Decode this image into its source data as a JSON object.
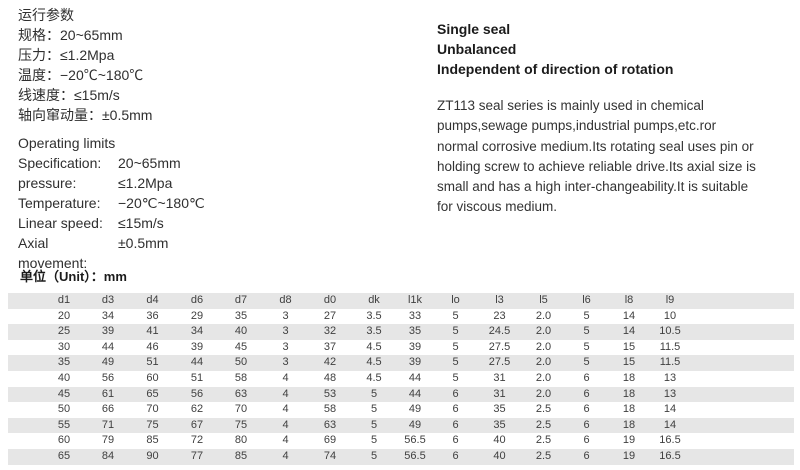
{
  "colors": {
    "stripe": "#e6e6e6",
    "text": "#2f2f2f"
  },
  "operating_cn": {
    "title": "运行参数",
    "rows": [
      {
        "label": "规格：",
        "value": "20~65mm"
      },
      {
        "label": "压力：",
        "value": "≤1.2Mpa"
      },
      {
        "label": "温度：",
        "value": "−20℃~180℃"
      },
      {
        "label": "线速度：",
        "value": "≤15m/s"
      },
      {
        "label": "轴向窜动量：",
        "value": "±0.5mm"
      }
    ]
  },
  "operating_en": {
    "title": "Operating limits",
    "rows": [
      {
        "label": "Specification:",
        "value": "20~65mm"
      },
      {
        "label": "pressure:",
        "value": "≤1.2Mpa"
      },
      {
        "label": "Temperature:",
        "value": "−20℃~180℃"
      },
      {
        "label": "Linear speed:",
        "value": "≤15m/s"
      },
      {
        "label": "Axial movement:",
        "value": "±0.5mm"
      }
    ]
  },
  "features": {
    "lines": [
      "Single seal",
      "Unbalanced",
      "Independent of direction of rotation"
    ]
  },
  "description": {
    "lines": [
      "ZT113 seal series is mainly used in chemical",
      "pumps,sewage pumps,industrial pumps,etc.ror",
      "normal corrosive medium.Its rotating seal uses pin or",
      "holding screw to achieve reliable drive.Its axial size is",
      "small and has a high inter-changeability.It is suitable",
      "for viscous medium."
    ]
  },
  "table": {
    "unit_label": "单位（Unit）：mm",
    "headers": [
      "d1",
      "d3",
      "d4",
      "d6",
      "d7",
      "d8",
      "d0",
      "dk",
      "l1k",
      "lo",
      "l3",
      "l5",
      "l6",
      "l8",
      "l9"
    ],
    "rows": [
      [
        "20",
        "34",
        "36",
        "29",
        "35",
        "3",
        "27",
        "3.5",
        "33",
        "5",
        "23",
        "2.0",
        "5",
        "14",
        "10"
      ],
      [
        "25",
        "39",
        "41",
        "34",
        "40",
        "3",
        "32",
        "3.5",
        "35",
        "5",
        "24.5",
        "2.0",
        "5",
        "14",
        "10.5"
      ],
      [
        "30",
        "44",
        "46",
        "39",
        "45",
        "3",
        "37",
        "4.5",
        "39",
        "5",
        "27.5",
        "2.0",
        "5",
        "15",
        "11.5"
      ],
      [
        "35",
        "49",
        "51",
        "44",
        "50",
        "3",
        "42",
        "4.5",
        "39",
        "5",
        "27.5",
        "2.0",
        "5",
        "15",
        "11.5"
      ],
      [
        "40",
        "56",
        "60",
        "51",
        "58",
        "4",
        "48",
        "4.5",
        "44",
        "5",
        "31",
        "2.0",
        "6",
        "18",
        "13"
      ],
      [
        "45",
        "61",
        "65",
        "56",
        "63",
        "4",
        "53",
        "5",
        "44",
        "6",
        "31",
        "2.0",
        "6",
        "18",
        "13"
      ],
      [
        "50",
        "66",
        "70",
        "62",
        "70",
        "4",
        "58",
        "5",
        "49",
        "6",
        "35",
        "2.5",
        "6",
        "18",
        "14"
      ],
      [
        "55",
        "71",
        "75",
        "67",
        "75",
        "4",
        "63",
        "5",
        "49",
        "6",
        "35",
        "2.5",
        "6",
        "18",
        "14"
      ],
      [
        "60",
        "79",
        "85",
        "72",
        "80",
        "4",
        "69",
        "5",
        "56.5",
        "6",
        "40",
        "2.5",
        "6",
        "19",
        "16.5"
      ],
      [
        "65",
        "84",
        "90",
        "77",
        "85",
        "4",
        "74",
        "5",
        "56.5",
        "6",
        "40",
        "2.5",
        "6",
        "19",
        "16.5"
      ]
    ]
  }
}
